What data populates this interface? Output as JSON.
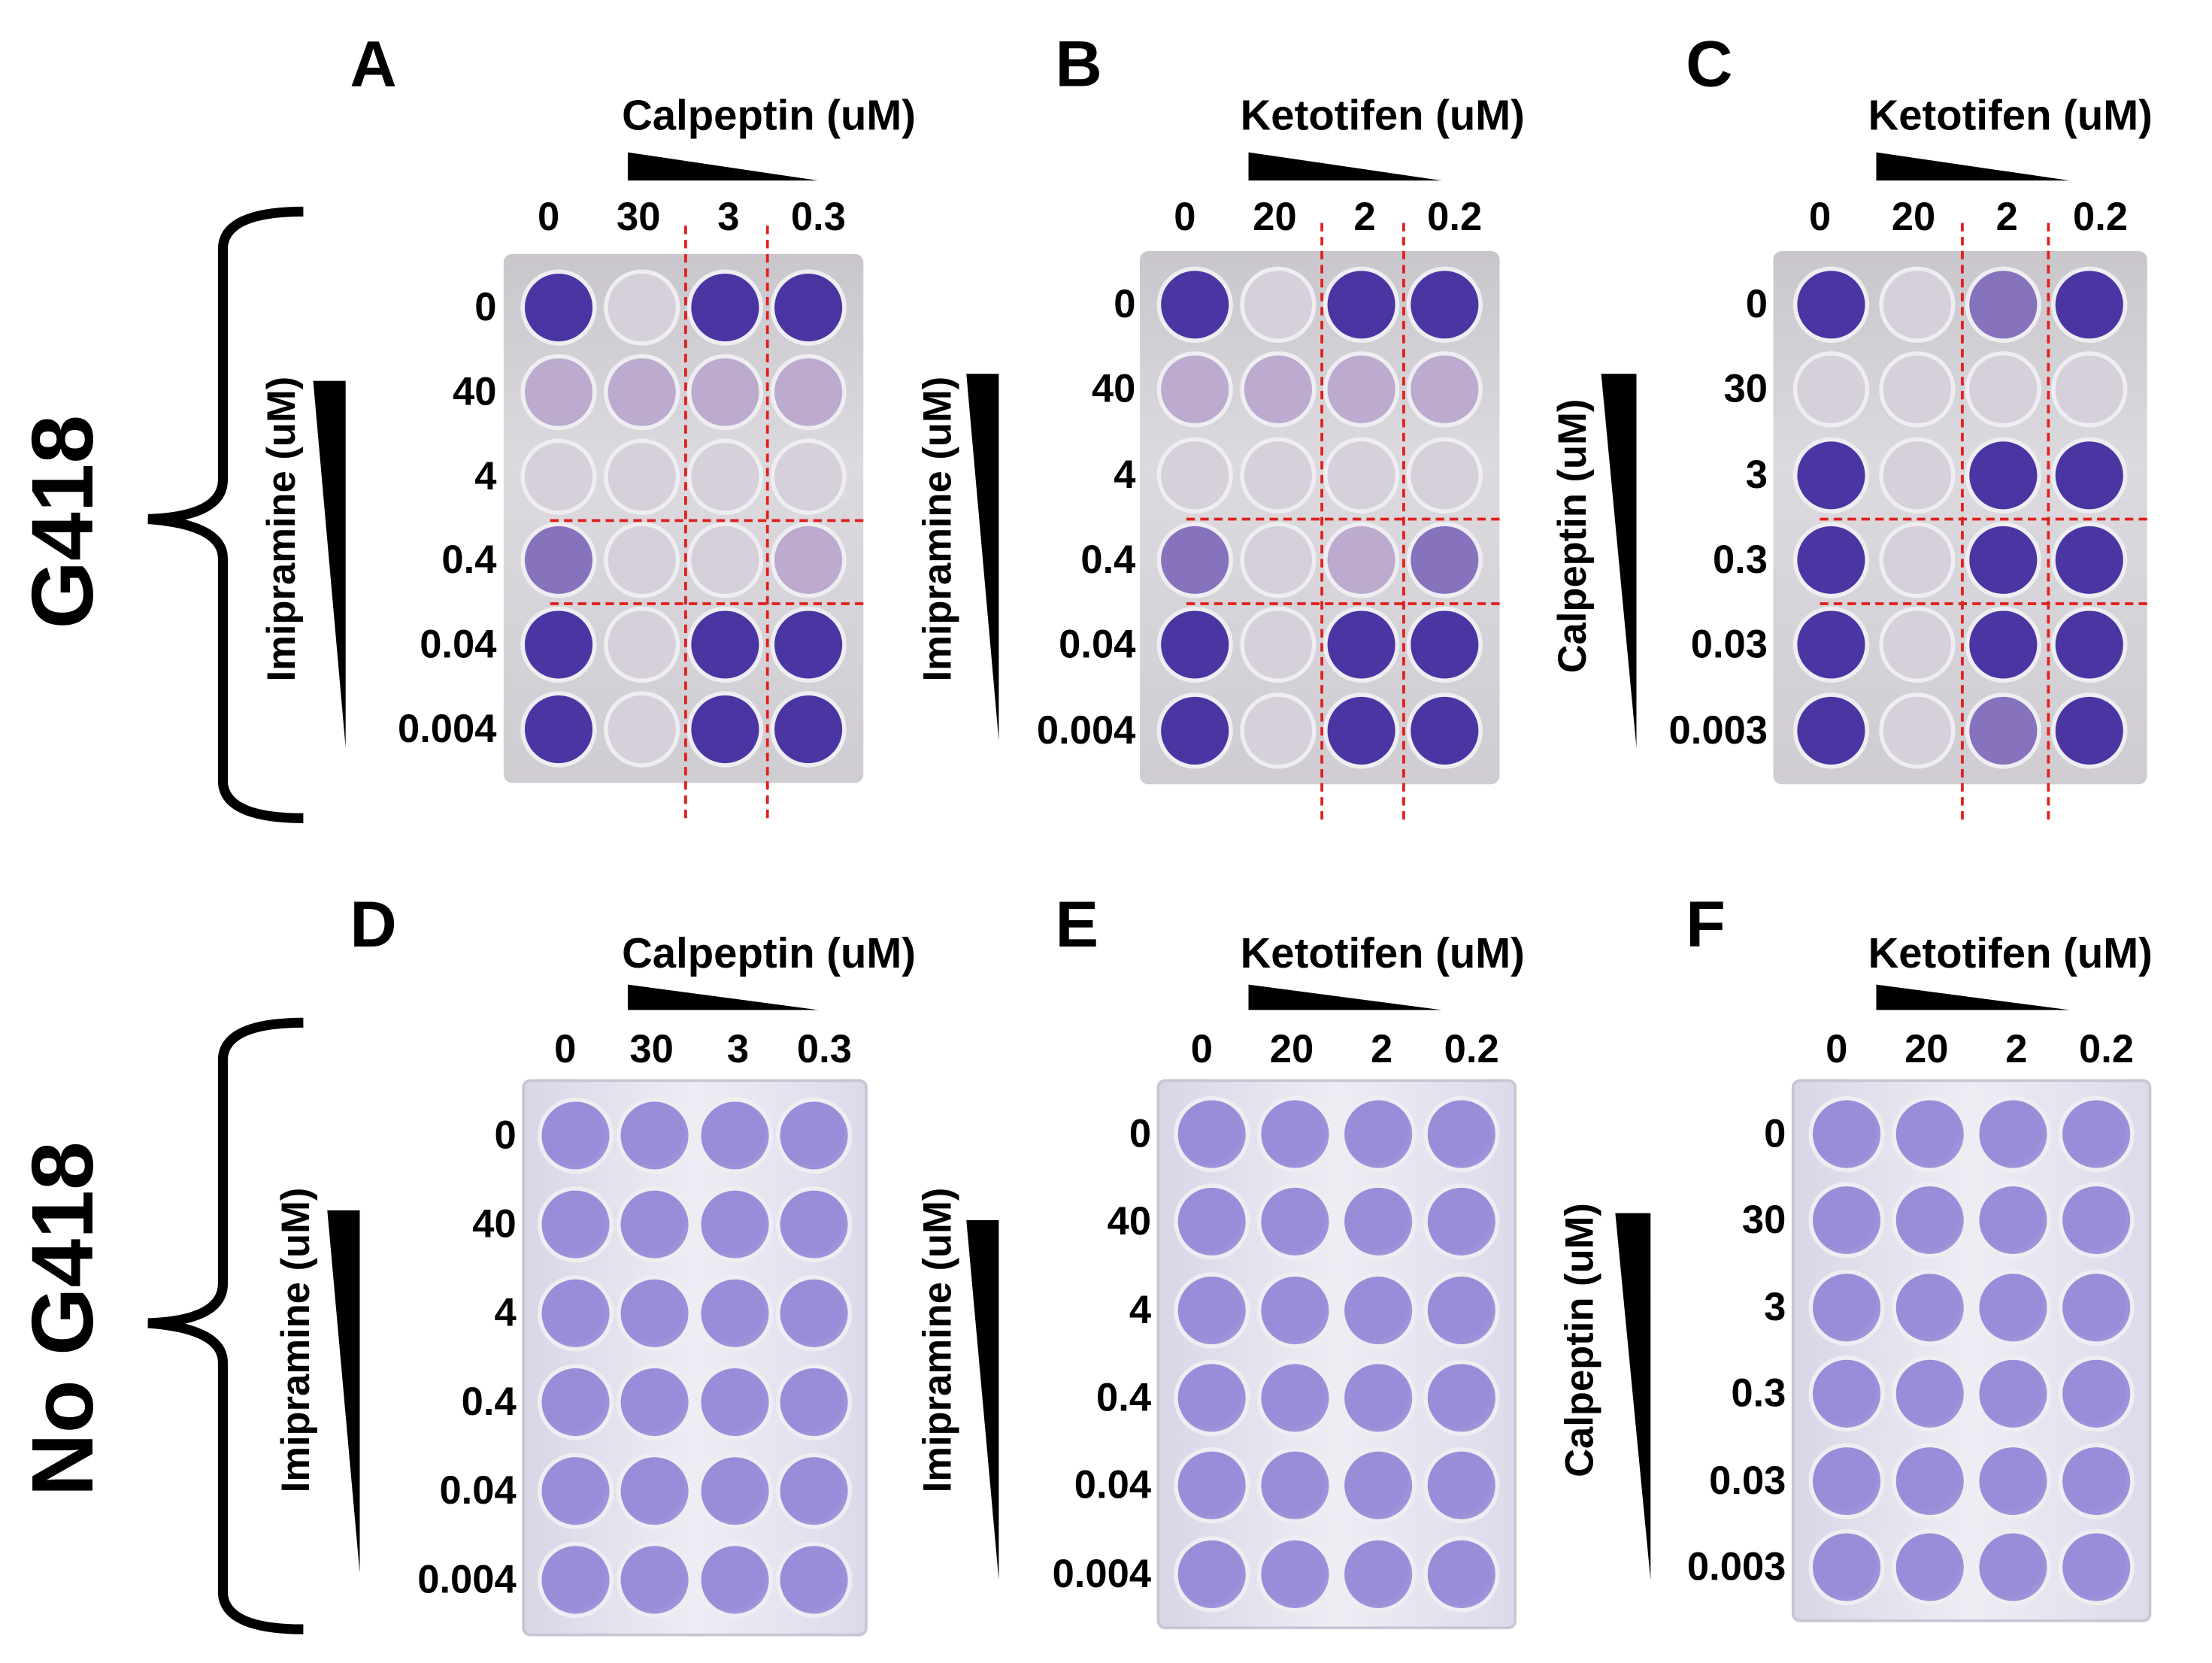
{
  "groups": [
    {
      "label": "G418"
    },
    {
      "label": "No G418"
    }
  ],
  "panels": [
    {
      "letter": "A",
      "col_drug": "Calpeptin (uM)",
      "col_conc": [
        "0",
        "30",
        "3",
        "0.3"
      ],
      "row_drug": "Imipramine (uM)",
      "row_conc": [
        "0",
        "40",
        "4",
        "0.4",
        "0.04",
        "0.004"
      ],
      "highlight_lines": true,
      "stain": [
        [
          "D",
          "F",
          "D",
          "D"
        ],
        [
          "L",
          "L",
          "L",
          "L"
        ],
        [
          "F",
          "F",
          "F",
          "F"
        ],
        [
          "M",
          "F",
          "F",
          "L"
        ],
        [
          "D",
          "F",
          "D",
          "D"
        ],
        [
          "D",
          "F",
          "D",
          "D"
        ]
      ]
    },
    {
      "letter": "B",
      "col_drug": "Ketotifen (uM)",
      "col_conc": [
        "0",
        "20",
        "2",
        "0.2"
      ],
      "row_drug": "Imipramine (uM)",
      "row_conc": [
        "0",
        "40",
        "4",
        "0.4",
        "0.04",
        "0.004"
      ],
      "highlight_lines": true,
      "stain": [
        [
          "D",
          "F",
          "D",
          "D"
        ],
        [
          "L",
          "L",
          "L",
          "L"
        ],
        [
          "F",
          "F",
          "F",
          "F"
        ],
        [
          "M",
          "F",
          "L",
          "M"
        ],
        [
          "D",
          "F",
          "D",
          "D"
        ],
        [
          "D",
          "F",
          "D",
          "D"
        ]
      ]
    },
    {
      "letter": "C",
      "col_drug": "Ketotifen (uM)",
      "col_conc": [
        "0",
        "20",
        "2",
        "0.2"
      ],
      "row_drug": "Calpeptin (uM)",
      "row_conc": [
        "0",
        "30",
        "3",
        "0.3",
        "0.03",
        "0.003"
      ],
      "highlight_lines": true,
      "stain": [
        [
          "D",
          "F",
          "M",
          "D"
        ],
        [
          "F",
          "F",
          "F",
          "F"
        ],
        [
          "D",
          "F",
          "D",
          "D"
        ],
        [
          "D",
          "F",
          "D",
          "D"
        ],
        [
          "D",
          "F",
          "D",
          "D"
        ],
        [
          "D",
          "F",
          "M",
          "D"
        ]
      ]
    },
    {
      "letter": "D",
      "col_drug": "Calpeptin (uM)",
      "col_conc": [
        "0",
        "30",
        "3",
        "0.3"
      ],
      "row_drug": "Imipramine (uM)",
      "row_conc": [
        "0",
        "40",
        "4",
        "0.4",
        "0.04",
        "0.004"
      ],
      "highlight_lines": false,
      "stain": [
        [
          "U",
          "U",
          "U",
          "U"
        ],
        [
          "U",
          "U",
          "U",
          "U"
        ],
        [
          "U",
          "U",
          "U",
          "U"
        ],
        [
          "U",
          "U",
          "U",
          "U"
        ],
        [
          "U",
          "U",
          "U",
          "U"
        ],
        [
          "U",
          "U",
          "U",
          "U"
        ]
      ]
    },
    {
      "letter": "E",
      "col_drug": "Ketotifen (uM)",
      "col_conc": [
        "0",
        "20",
        "2",
        "0.2"
      ],
      "row_drug": "Imipramine (uM)",
      "row_conc": [
        "0",
        "40",
        "4",
        "0.4",
        "0.04",
        "0.004"
      ],
      "highlight_lines": false,
      "stain": [
        [
          "U",
          "U",
          "U",
          "U"
        ],
        [
          "U",
          "U",
          "U",
          "U"
        ],
        [
          "U",
          "U",
          "U",
          "U"
        ],
        [
          "U",
          "U",
          "U",
          "U"
        ],
        [
          "U",
          "U",
          "U",
          "U"
        ],
        [
          "U",
          "U",
          "U",
          "U"
        ]
      ]
    },
    {
      "letter": "F",
      "col_drug": "Ketotifen (uM)",
      "col_conc": [
        "0",
        "20",
        "2",
        "0.2"
      ],
      "row_drug": "Calpeptin (uM)",
      "row_conc": [
        "0",
        "30",
        "3",
        "0.3",
        "0.03",
        "0.003"
      ],
      "highlight_lines": false,
      "stain": [
        [
          "U",
          "U",
          "U",
          "U"
        ],
        [
          "U",
          "U",
          "U",
          "U"
        ],
        [
          "U",
          "U",
          "U",
          "U"
        ],
        [
          "U",
          "U",
          "U",
          "U"
        ],
        [
          "U",
          "U",
          "U",
          "U"
        ],
        [
          "U",
          "U",
          "U",
          "U"
        ]
      ]
    }
  ],
  "stain_colors": {
    "D": "#4b35a2",
    "M": "#8672bd",
    "L": "#bcaacf",
    "F": "#d6d0da",
    "U": "#9a8cd8"
  }
}
